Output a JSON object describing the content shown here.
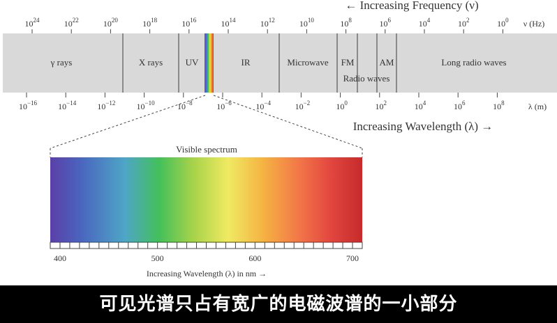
{
  "freq_header": "← Increasing Frequency (ν)",
  "freq_unit": "ν (Hz)",
  "freq_ticks": [
    {
      "base": "10",
      "exp": "24"
    },
    {
      "base": "10",
      "exp": "22"
    },
    {
      "base": "10",
      "exp": "20"
    },
    {
      "base": "10",
      "exp": "18"
    },
    {
      "base": "10",
      "exp": "16"
    },
    {
      "base": "10",
      "exp": "14"
    },
    {
      "base": "10",
      "exp": "12"
    },
    {
      "base": "10",
      "exp": "10"
    },
    {
      "base": "10",
      "exp": "8"
    },
    {
      "base": "10",
      "exp": "6"
    },
    {
      "base": "10",
      "exp": "4"
    },
    {
      "base": "10",
      "exp": "2"
    },
    {
      "base": "10",
      "exp": "0"
    }
  ],
  "regions": [
    "γ rays",
    "X rays",
    "UV",
    "IR",
    "Microwave",
    "FM",
    "AM",
    "Long radio waves"
  ],
  "radio_label": "Radio waves",
  "wl_ticks": [
    {
      "base": "10",
      "exp": "−16"
    },
    {
      "base": "10",
      "exp": "−14"
    },
    {
      "base": "10",
      "exp": "−12"
    },
    {
      "base": "10",
      "exp": "−10"
    },
    {
      "base": "10",
      "exp": "−8"
    },
    {
      "base": "10",
      "exp": "−6"
    },
    {
      "base": "10",
      "exp": "−4"
    },
    {
      "base": "10",
      "exp": "−2"
    },
    {
      "base": "10",
      "exp": "0"
    },
    {
      "base": "10",
      "exp": "2"
    },
    {
      "base": "10",
      "exp": "4"
    },
    {
      "base": "10",
      "exp": "6"
    },
    {
      "base": "10",
      "exp": "8"
    }
  ],
  "wl_unit": "λ (m)",
  "wl_header": "Increasing Wavelength (λ) →",
  "visible": {
    "title": "Visible spectrum",
    "ticks": [
      "400",
      "500",
      "600",
      "700"
    ],
    "tick_values_nm": [
      400,
      500,
      600,
      700
    ],
    "range_nm": [
      390,
      710
    ],
    "axis_label": "Increasing Wavelength (λ) in nm →"
  },
  "caption": "可见光谱只占有宽广的电磁波谱的一小部分",
  "colors": {
    "band": "#d9d9d9",
    "line": "#555555",
    "caption_bg": "#000000",
    "caption_text": "#ffffff",
    "spectrum": [
      "#5b3fa8",
      "#4f6fc0",
      "#4fa0c4",
      "#3fbf4a",
      "#9ed042",
      "#f0ec5a",
      "#f5b03c",
      "#f07040",
      "#e04040",
      "#c82a2a"
    ]
  }
}
